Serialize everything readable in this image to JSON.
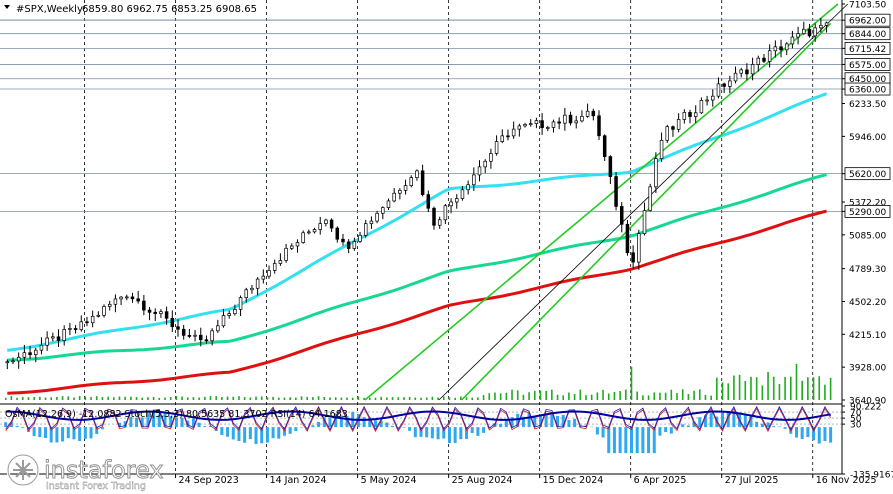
{
  "header": {
    "symbol": "#SPX,Weekly",
    "ohlc": "6859.80 6962.75 6853.25 6908.65"
  },
  "indicator_header": "OsMA(12,26,9) -12.0882  Stoch(5,3,3) 80.5635 81.3702  RSI(14) 64.1683",
  "watermark": {
    "brand": "instaforex",
    "tagline": "Instant Forex Trading"
  },
  "colors": {
    "ema_fast": "#33e0f0",
    "ema_mid": "#16d890",
    "ema_slow": "#e01010",
    "channel": "#22cc22",
    "volume": "#1faa1f",
    "osma": "#2ea8f0",
    "stoch_main": "#1c1cc8",
    "stoch_signal": "#d01c1c",
    "rsi": "#0000a0",
    "candle": "#000000"
  },
  "chart_data": {
    "type": "candlestick",
    "timeframe": "Weekly",
    "x_tick_labels": [
      "24 Sep 2023",
      "14 Jan 2024",
      "5 May 2024",
      "25 Aug 2024",
      "15 Dec 2024",
      "6 Apr 2025",
      "27 Jul 2025",
      "16 Nov 2025"
    ],
    "y_tick_labels": [
      "7103.50",
      "6962.00",
      "6844.00",
      "6715.42",
      "6575.00",
      "6450.00",
      "6360.00",
      "6233.50",
      "5946.00",
      "5620.00",
      "5372.20",
      "5290.00",
      "5085.00",
      "4789.30",
      "4502.20",
      "4215.10",
      "3928.00",
      "3640.90"
    ],
    "highlighted_levels": [
      6962.0,
      6844.0,
      6715.42,
      6575.0,
      6450.0,
      6360.0,
      5620.0,
      5290.0
    ],
    "ylim": [
      3640.9,
      7103.5
    ],
    "last_bar": {
      "open": 6859.8,
      "high": 6962.75,
      "low": 6853.25,
      "close": 6908.65
    },
    "price_key_points": [
      {
        "date": "2023-03-01",
        "close": 3970
      },
      {
        "date": "2023-06-01",
        "close": 4290
      },
      {
        "date": "2023-07-25",
        "close": 4580
      },
      {
        "date": "2023-10-27",
        "close": 4120
      },
      {
        "date": "2024-01-14",
        "close": 4790
      },
      {
        "date": "2024-03-28",
        "close": 5250
      },
      {
        "date": "2024-04-19",
        "close": 4970
      },
      {
        "date": "2024-07-16",
        "close": 5660
      },
      {
        "date": "2024-08-05",
        "close": 5180
      },
      {
        "date": "2024-11-08",
        "close": 6000
      },
      {
        "date": "2025-02-19",
        "close": 6140
      },
      {
        "date": "2025-04-07",
        "close": 4830
      },
      {
        "date": "2025-05-15",
        "close": 5950
      },
      {
        "date": "2025-07-27",
        "close": 6390
      },
      {
        "date": "2025-10-01",
        "close": 6700
      },
      {
        "date": "2025-11-05",
        "close": 6850
      },
      {
        "date": "2025-12-08",
        "close": 6908.65
      }
    ],
    "series": [
      {
        "values": [
          {
            "date": "2023-03-01",
            "value": 4075
          },
          {
            "date": "2023-12-01",
            "value": 4430
          },
          {
            "date": "2024-08-25",
            "value": 5480
          },
          {
            "date": "2025-04-06",
            "value": 5640
          },
          {
            "date": "2025-12-08",
            "value": 6330
          }
        ]
      },
      {
        "values": [
          {
            "date": "2023-03-01",
            "value": 3990
          },
          {
            "date": "2023-12-01",
            "value": 4150
          },
          {
            "date": "2024-08-25",
            "value": 4760
          },
          {
            "date": "2025-04-06",
            "value": 5080
          },
          {
            "date": "2025-12-08",
            "value": 5620
          }
        ]
      },
      {
        "values": [
          {
            "date": "2023-03-01",
            "value": 3700
          },
          {
            "date": "2023-12-01",
            "value": 3880
          },
          {
            "date": "2024-08-25",
            "value": 4460
          },
          {
            "date": "2025-04-06",
            "value": 4790
          },
          {
            "date": "2025-12-08",
            "value": 5300
          }
        ]
      }
    ],
    "channel_lines": [
      {
        "from": {
          "date": "2024-05-14",
          "value": 3640.9
        },
        "to": {
          "date": "2025-12-17",
          "value": 7103.5
        }
      },
      {
        "from": {
          "date": "2024-08-13",
          "value": 3640.9
        },
        "to": {
          "date": "2025-12-29",
          "value": 7103.5
        }
      },
      {
        "from": {
          "date": "2024-09-10",
          "value": 3640.9
        },
        "to": {
          "date": "2025-12-08",
          "value": 6935
        }
      }
    ],
    "volume_bars": [
      {
        "date": "2025-04-06",
        "height": 0.92
      },
      {
        "date": "2025-08-15",
        "height": 0.7
      },
      {
        "date": "2025-09-20",
        "height": 0.78
      },
      {
        "date": "2025-10-30",
        "height": 1.0
      }
    ],
    "oscillator_axis_labels": [
      "90.222",
      "70",
      "50",
      "30",
      "-135.9167"
    ],
    "oscillator_levels": [
      70,
      50,
      30
    ]
  }
}
